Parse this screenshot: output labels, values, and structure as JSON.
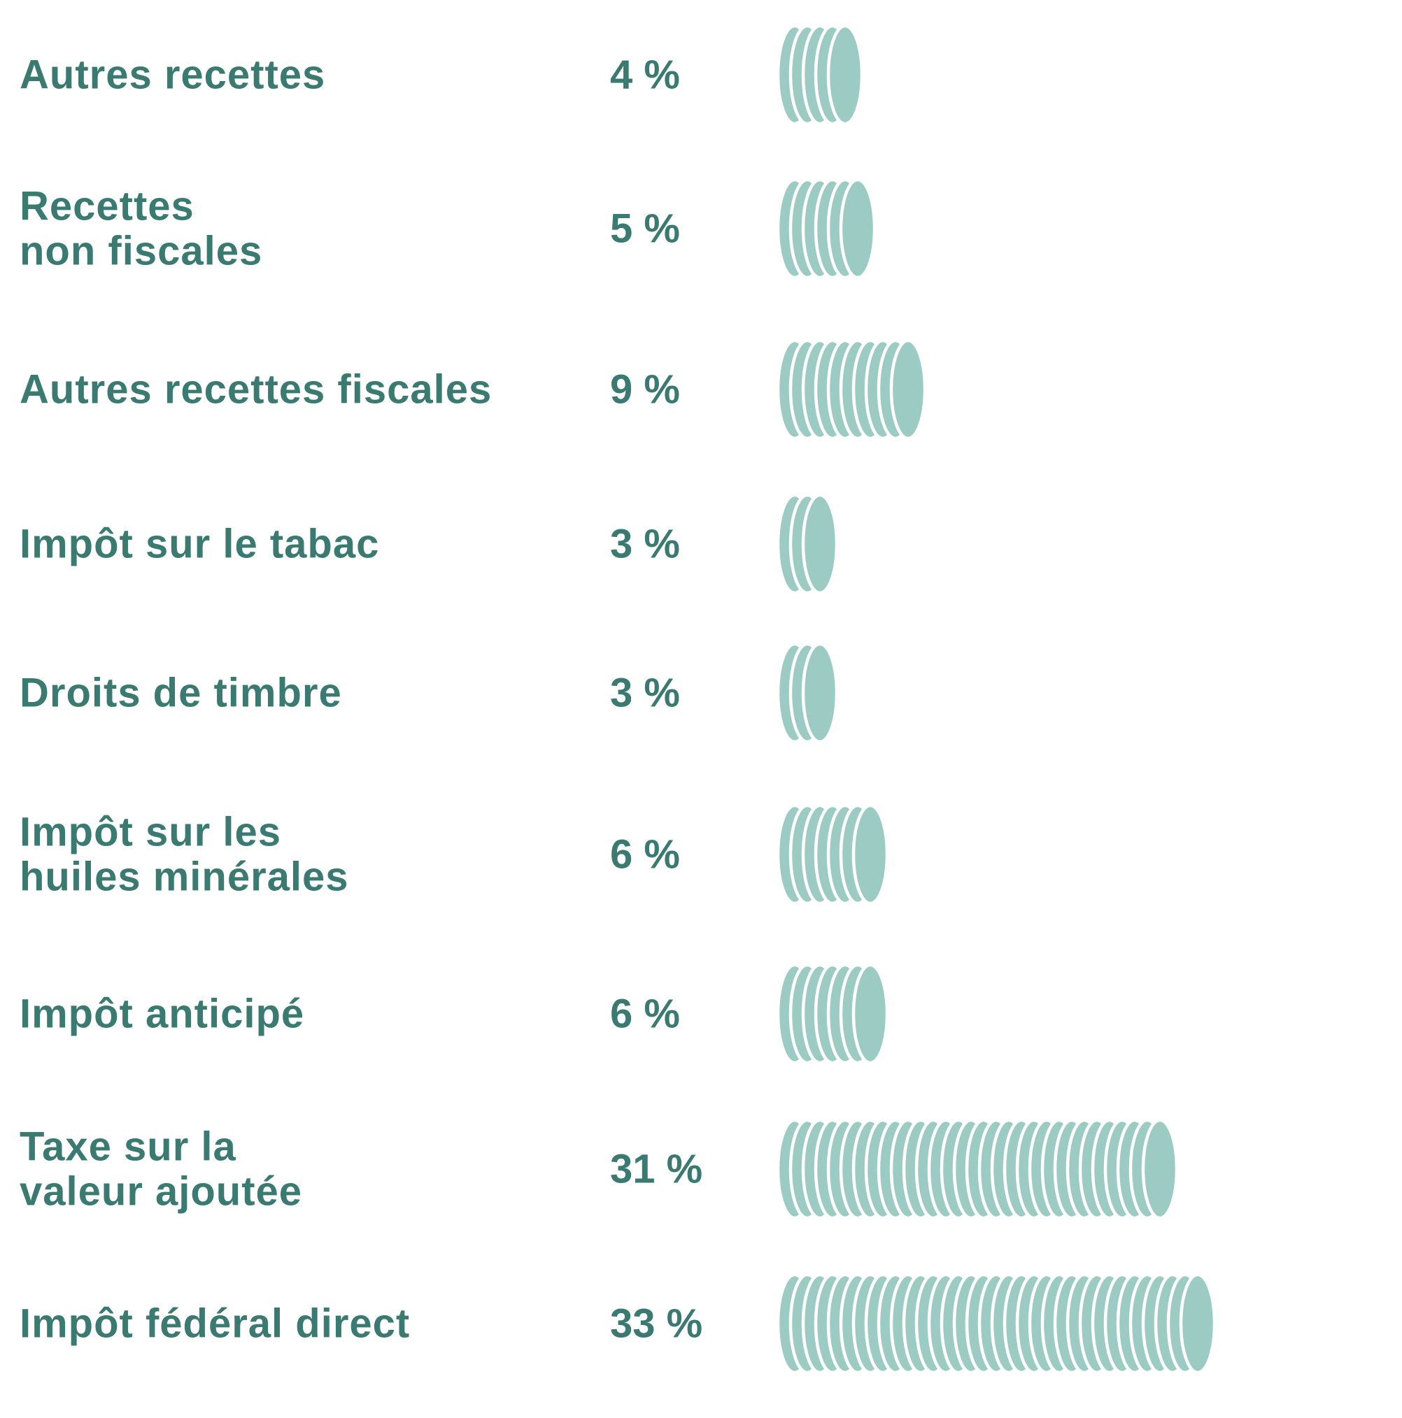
{
  "chart_data": {
    "type": "bar",
    "title": "",
    "xlabel": "",
    "ylabel": "",
    "unit": "%",
    "colors": {
      "bar": "#9bcbc2",
      "text": "#3a7a70",
      "background": "#ffffff"
    },
    "categories": [
      [
        "Autres recettes"
      ],
      [
        "Recettes",
        "non fiscales"
      ],
      [
        "Autres recettes fiscales"
      ],
      [
        "Impôt sur le tabac"
      ],
      [
        "Droits de timbre"
      ],
      [
        "Impôt sur les",
        "huiles minérales"
      ],
      [
        "Impôt anticipé"
      ],
      [
        "Taxe sur la",
        "valeur ajoutée"
      ],
      [
        "Impôt fédéral direct"
      ]
    ],
    "values": [
      4,
      5,
      9,
      3,
      3,
      6,
      6,
      31,
      33
    ],
    "value_labels": [
      "4 %",
      "5 %",
      "9 %",
      "3 %",
      "3 %",
      "6 %",
      "6 %",
      "31 %",
      "33 %"
    ],
    "coin_counts": [
      5,
      6,
      10,
      3,
      3,
      7,
      7,
      30,
      33
    ],
    "grid": false,
    "legend": "none"
  }
}
